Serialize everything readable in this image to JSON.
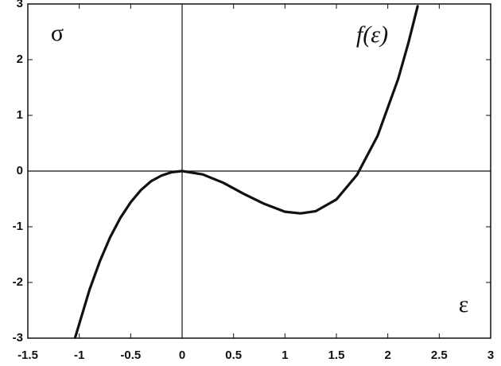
{
  "chart_data": {
    "type": "line",
    "y_label": "σ",
    "x_label": "ε",
    "x": [
      -1.04,
      -0.9,
      -0.8,
      -0.7,
      -0.6,
      -0.5,
      -0.4,
      -0.3,
      -0.2,
      -0.1,
      0,
      0.2,
      0.4,
      0.6,
      0.8,
      1.0,
      1.15,
      1.3,
      1.5,
      1.7,
      1.9,
      2.1,
      2.2,
      2.29
    ],
    "series": [
      {
        "name": "f(ε)",
        "color": "#111111",
        "values": [
          -2.99,
          -2.13,
          -1.62,
          -1.19,
          -0.84,
          -0.56,
          -0.34,
          -0.18,
          -0.08,
          -0.02,
          0,
          -0.06,
          -0.21,
          -0.41,
          -0.59,
          -0.73,
          -0.76,
          -0.72,
          -0.51,
          -0.07,
          0.63,
          1.65,
          2.3,
          2.96
        ]
      }
    ],
    "xlim": [
      -1.5,
      3
    ],
    "ylim": [
      -3,
      3
    ],
    "xticks": [
      -1.5,
      -1,
      -0.5,
      0,
      0.5,
      1,
      1.5,
      2,
      2.5,
      3
    ],
    "yticks": [
      -3,
      -2,
      -1,
      0,
      1,
      2,
      3
    ],
    "grid": false
  }
}
